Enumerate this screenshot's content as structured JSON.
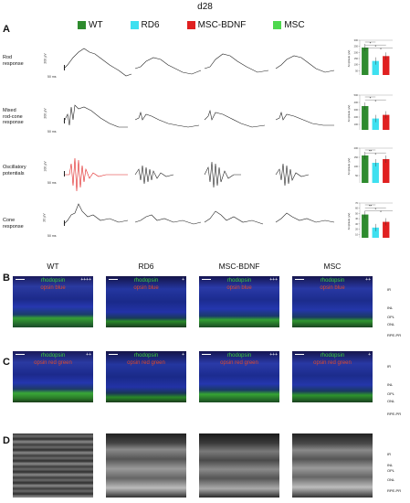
{
  "figure_title": "d28",
  "panels": {
    "a": "A",
    "b": "B",
    "c": "C",
    "d": "D"
  },
  "legend": [
    {
      "label": "WT",
      "color": "#2e8b2e"
    },
    {
      "label": "RD6",
      "color": "#3ee0f0"
    },
    {
      "label": "MSC-BDNF",
      "color": "#e02020"
    },
    {
      "label": "MSC",
      "color": "#4ed84e"
    }
  ],
  "erg_rows": [
    {
      "label": "Rod\nresponse",
      "y_scale": "200 µV",
      "x_scale": "50 ms"
    },
    {
      "label": "Mixed\nrod-cone\nresponse",
      "y_scale": "200 µV",
      "x_scale": "50 ms"
    },
    {
      "label": "Oscillatory\npotentials",
      "y_scale": "100 µV",
      "x_scale": "50 ms"
    },
    {
      "label": "Cone\nresponse",
      "y_scale": "20 µV",
      "x_scale": "50 ms"
    }
  ],
  "bar_axis_label": "Amplitude (µV)",
  "chart_data": [
    {
      "type": "bar",
      "title": "Rod response",
      "categories": [
        "WT",
        "RD6",
        "MSC-BDNF",
        "MSC"
      ],
      "values": [
        240,
        130,
        170,
        140
      ],
      "ylim": [
        0,
        300
      ],
      "yticks": [
        "0",
        "50",
        "100",
        "150",
        "200",
        "250",
        "300"
      ],
      "significance": [
        "*",
        "*",
        "*"
      ]
    },
    {
      "type": "bar",
      "title": "Mixed rod-cone response",
      "categories": [
        "WT",
        "RD6",
        "MSC-BDNF",
        "MSC"
      ],
      "values": [
        350,
        180,
        230,
        190
      ],
      "ylim": [
        0,
        500
      ],
      "yticks": [
        "0",
        "100",
        "200",
        "300",
        "400",
        "500"
      ],
      "significance": [
        "*",
        "*"
      ]
    },
    {
      "type": "bar",
      "title": "Oscillatory potentials",
      "categories": [
        "WT",
        "RD6",
        "MSC-BDNF",
        "MSC"
      ],
      "values": [
        160,
        120,
        140,
        125
      ],
      "ylim": [
        0,
        200
      ],
      "yticks": [
        "0",
        "50",
        "100",
        "150",
        "200"
      ],
      "significance": [
        "**",
        "*"
      ]
    },
    {
      "type": "bar",
      "title": "Cone response",
      "categories": [
        "WT",
        "RD6",
        "MSC-BDNF",
        "MSC"
      ],
      "values": [
        48,
        23,
        34,
        24
      ],
      "ylim": [
        0,
        70
      ],
      "yticks": [
        "0",
        "10",
        "20",
        "30",
        "40",
        "50",
        "60",
        "70"
      ],
      "significance": [
        "**",
        "*",
        "*"
      ]
    }
  ],
  "columns": [
    "WT",
    "RD6",
    "MSC-BDNF",
    "MSC"
  ],
  "row_b": {
    "green": "rhodopsin",
    "red": "opsin blue",
    "scores": [
      "++++",
      "+",
      "+++",
      "++"
    ],
    "layers": [
      "IR",
      "INL",
      "OPL",
      "ONL",
      "RPE-PR"
    ]
  },
  "row_c": {
    "green": "rhodopsin",
    "red": "opsin red green",
    "scores": [
      "++",
      "+",
      "+++",
      "+"
    ],
    "layers": [
      "IR",
      "INL",
      "OPL",
      "ONL",
      "RPE-PR"
    ]
  },
  "row_d": {
    "layers": [
      "IR",
      "INL",
      "OPL",
      "ONL",
      "RPE-PR"
    ]
  }
}
